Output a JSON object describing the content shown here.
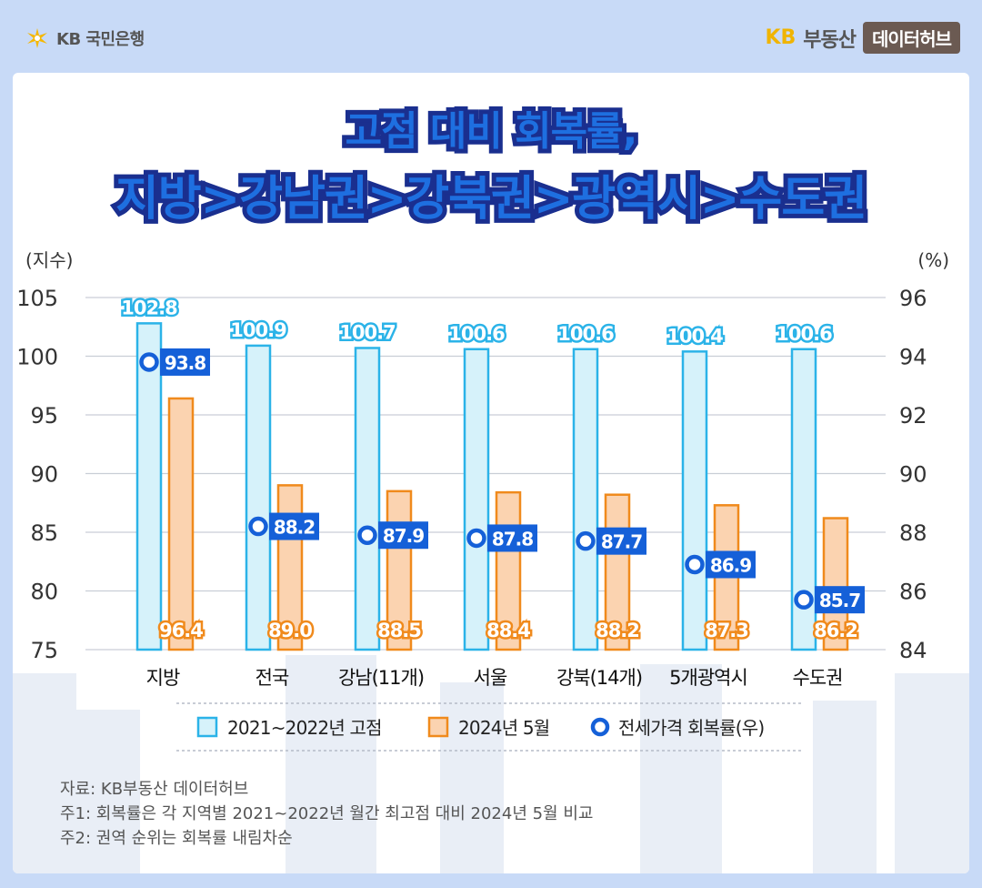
{
  "header": {
    "bank_name": "KB 국민은행",
    "hub_kb": "KB",
    "hub_name": "부동산",
    "hub_badge": "데이터허브"
  },
  "title": {
    "line1": "고점 대비 회복률,",
    "line2": "지방>강남권>강북권>광역시>수도권"
  },
  "chart_data": {
    "type": "bar",
    "categories": [
      "지방",
      "전국",
      "강남(11개)",
      "서울",
      "강북(14개)",
      "5개광역시",
      "수도권"
    ],
    "series": [
      {
        "name": "2021~2022년 고점",
        "axis": "left",
        "type": "bar",
        "values": [
          102.8,
          100.9,
          100.7,
          100.6,
          100.6,
          100.4,
          100.6
        ],
        "color": "#2bb3e8",
        "fill": "#d6f2fa"
      },
      {
        "name": "2024년 5월",
        "axis": "left",
        "type": "bar",
        "values": [
          96.4,
          89.0,
          88.5,
          88.4,
          88.2,
          87.3,
          86.2
        ],
        "color": "#f08a1c",
        "fill": "#fbd3b0"
      },
      {
        "name": "전세가격 회복률(우)",
        "axis": "right",
        "type": "scatter",
        "values": [
          93.8,
          88.2,
          87.9,
          87.8,
          87.7,
          86.9,
          85.7
        ],
        "color": "#1560d8"
      }
    ],
    "left_axis": {
      "label": "(지수)",
      "ylim": [
        75,
        105
      ],
      "ticks": [
        75,
        80,
        85,
        90,
        95,
        100,
        105
      ]
    },
    "right_axis": {
      "label": "(%)",
      "ylim": [
        84,
        96
      ],
      "ticks": [
        84,
        86,
        88,
        90,
        92,
        94,
        96
      ]
    },
    "grid": true,
    "legend_position": "bottom"
  },
  "notes": {
    "source": "자료: KB부동산 데이터허브",
    "note1": "주1: 회복률은 각 지역별 2021~2022년 월간 최고점 대비 2024년 5월 비교",
    "note2": "주2: 권역 순위는 회복률 내림차순"
  }
}
